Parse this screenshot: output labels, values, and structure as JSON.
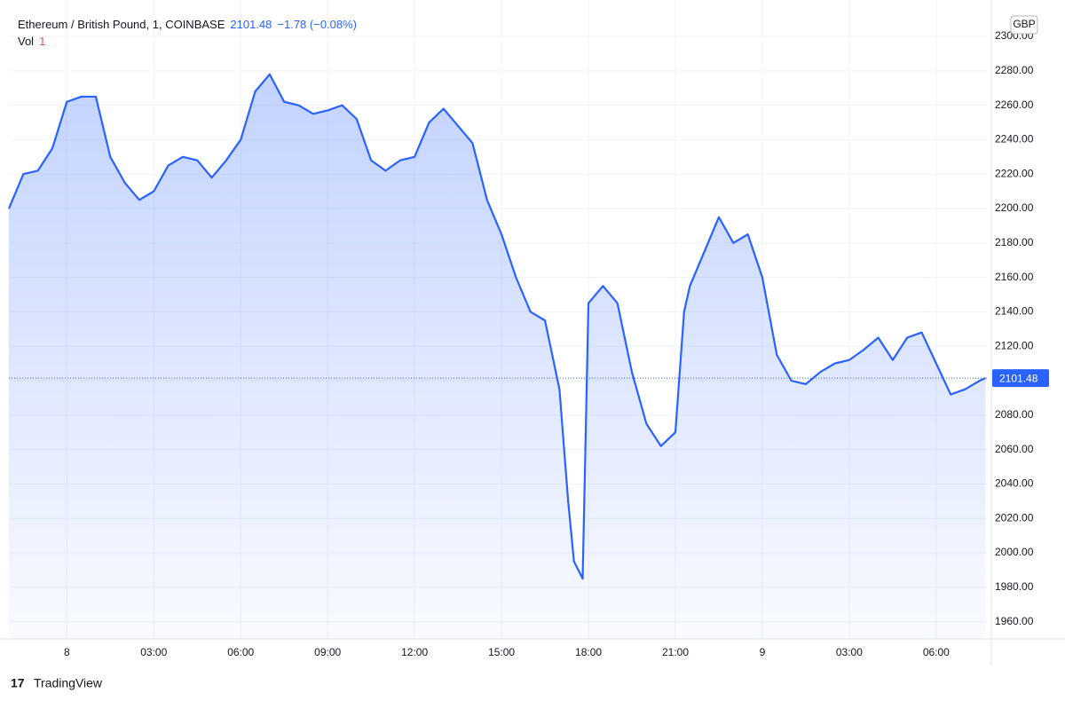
{
  "header": {
    "symbol": "Ethereum / British Pound, 1, COINBASE",
    "price": "2101.48",
    "change": "−1.78 (−0.08%)",
    "volume_label": "Vol",
    "volume_value": "1"
  },
  "currency": "GBP",
  "brand": "TradingView",
  "chart_data": {
    "type": "area",
    "x": [
      -2,
      -1.5,
      -1,
      -0.5,
      0,
      0.5,
      1,
      1.5,
      2,
      2.5,
      3,
      3.5,
      4,
      4.5,
      5,
      5.5,
      6,
      6.5,
      7,
      7.5,
      8,
      8.5,
      9,
      9.5,
      10,
      10.5,
      11,
      11.5,
      12,
      12.5,
      13,
      13.5,
      14,
      14.5,
      15,
      15.5,
      16,
      16.5,
      17,
      17.3,
      17.5,
      17.8,
      18,
      18.5,
      19,
      19.5,
      20,
      20.5,
      21,
      21.3,
      21.5,
      22,
      22.5,
      23,
      23.5,
      24,
      24.5,
      25,
      25.5,
      26,
      26.5,
      27,
      27.5,
      28,
      28.5,
      29,
      29.5,
      30,
      30.5,
      31,
      31.5,
      31.7
    ],
    "series": [
      {
        "name": "ETHGBP",
        "color": "#2962ff",
        "values": [
          2200,
          2220,
          2222,
          2235,
          2262,
          2265,
          2265,
          2230,
          2215,
          2205,
          2210,
          2225,
          2230,
          2228,
          2218,
          2228,
          2240,
          2268,
          2278,
          2262,
          2260,
          2255,
          2257,
          2260,
          2252,
          2228,
          2222,
          2228,
          2230,
          2250,
          2258,
          2248,
          2238,
          2205,
          2185,
          2160,
          2140,
          2135,
          2095,
          2030,
          1995,
          1985,
          2145,
          2155,
          2145,
          2105,
          2075,
          2062,
          2070,
          2140,
          2155,
          2175,
          2195,
          2180,
          2185,
          2160,
          2115,
          2100,
          2098,
          2105,
          2110,
          2112,
          2118,
          2125,
          2112,
          2125,
          2128,
          2110,
          2092,
          2095,
          2100,
          2101.48
        ]
      }
    ],
    "last_price": 2101.48,
    "xlim": [
      -2,
      31.75
    ],
    "ylim": [
      1950,
      2316
    ],
    "xticks": [
      {
        "value": 0,
        "label": "8"
      },
      {
        "value": 3,
        "label": "03:00"
      },
      {
        "value": 6,
        "label": "06:00"
      },
      {
        "value": 9,
        "label": "09:00"
      },
      {
        "value": 12,
        "label": "12:00"
      },
      {
        "value": 15,
        "label": "15:00"
      },
      {
        "value": 18,
        "label": "18:00"
      },
      {
        "value": 21,
        "label": "21:00"
      },
      {
        "value": 24,
        "label": "9"
      },
      {
        "value": 27,
        "label": "03:00"
      },
      {
        "value": 30,
        "label": "06:00"
      }
    ],
    "yticks": [
      {
        "value": 1960,
        "label": "1960.00"
      },
      {
        "value": 1980,
        "label": "1980.00"
      },
      {
        "value": 2000,
        "label": "2000.00"
      },
      {
        "value": 2020,
        "label": "2020.00"
      },
      {
        "value": 2040,
        "label": "2040.00"
      },
      {
        "value": 2060,
        "label": "2060.00"
      },
      {
        "value": 2080,
        "label": "2080.00"
      },
      {
        "value": 2100,
        "label": "2100.00"
      },
      {
        "value": 2120,
        "label": "2120.00"
      },
      {
        "value": 2140,
        "label": "2140.00"
      },
      {
        "value": 2160,
        "label": "2160.00"
      },
      {
        "value": 2180,
        "label": "2180.00"
      },
      {
        "value": 2200,
        "label": "2200.00"
      },
      {
        "value": 2220,
        "label": "2220.00"
      },
      {
        "value": 2240,
        "label": "2240.00"
      },
      {
        "value": 2260,
        "label": "2260.00"
      },
      {
        "value": 2280,
        "label": "2280.00"
      },
      {
        "value": 2300,
        "label": "2300.00"
      }
    ],
    "grid": true
  }
}
